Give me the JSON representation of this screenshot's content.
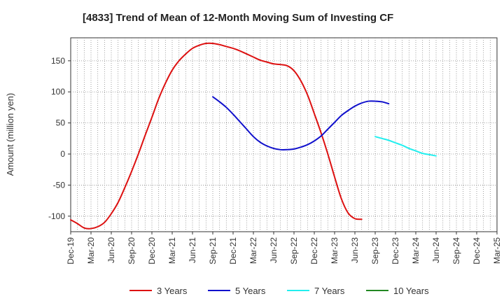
{
  "chart_data": {
    "type": "line",
    "title": "[4833]  Trend of Mean of 12-Month Moving Sum of Investing CF",
    "ylabel": "Amount (million yen)",
    "xlabel": "",
    "ylim": [
      -125,
      187
    ],
    "yticks": [
      150,
      100,
      50,
      0,
      -50,
      -100
    ],
    "xticks": [
      "Dec-19",
      "Mar-20",
      "Jun-20",
      "Sep-20",
      "Dec-20",
      "Mar-21",
      "Jun-21",
      "Sep-21",
      "Dec-21",
      "Mar-22",
      "Jun-22",
      "Sep-22",
      "Dec-22",
      "Mar-23",
      "Jun-23",
      "Sep-23",
      "Dec-23",
      "Mar-24",
      "Jun-24",
      "Sep-24",
      "Dec-24",
      "Mar-25"
    ],
    "grid": true,
    "legend_position": "bottom",
    "series": [
      {
        "name": "3 Years",
        "color": "#dd1111",
        "start_index": 0,
        "values": [
          -106,
          -112,
          -119,
          -120,
          -117,
          -110,
          -96,
          -78,
          -54,
          -28,
          0,
          30,
          59,
          89,
          114,
          135,
          150,
          161,
          170,
          175,
          178,
          178,
          176,
          173,
          170,
          166,
          161,
          156,
          151,
          148,
          145,
          144,
          142,
          134,
          118,
          95,
          65,
          34,
          0,
          -37,
          -72,
          -95,
          -104,
          -105
        ]
      },
      {
        "name": "5 Years",
        "color": "#1010cc",
        "start_index": 21,
        "values": [
          92,
          84,
          75,
          64,
          52,
          40,
          28,
          19,
          13,
          9,
          7,
          7,
          8,
          11,
          15,
          21,
          29,
          40,
          51,
          62,
          70,
          77,
          82,
          85,
          85,
          84,
          81
        ]
      },
      {
        "name": "7 Years",
        "color": "#22eeee",
        "start_index": 45,
        "values": [
          28,
          25,
          22,
          18,
          14,
          9,
          5,
          1,
          -1,
          -3
        ]
      },
      {
        "name": "10 Years",
        "color": "#228822",
        "start_index": 0,
        "values": []
      }
    ]
  }
}
